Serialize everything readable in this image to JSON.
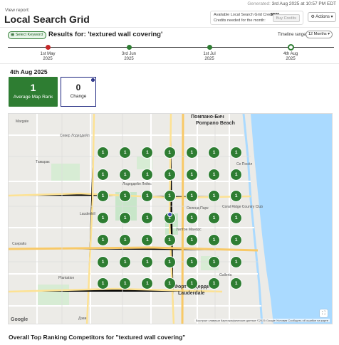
{
  "header": {
    "generated_prefix": "Generated:",
    "generated_value": "3rd Aug 2025 at 10:57 PM EDT",
    "view_report": "View report:",
    "title": "Local Search Grid"
  },
  "credits": {
    "available_label": "Available Local Search Grid Credits:",
    "available_value": "6370",
    "needed_label": "Credits needed for the month:",
    "needed_value": "0",
    "buy_label": "Buy Credits"
  },
  "actions": {
    "label": "Actions",
    "icon": "gear-icon",
    "chevron": "chevron-down-icon"
  },
  "keyword_bar": {
    "select_label": "Select Keyword",
    "results_title": "Results for: 'textured wall covering'",
    "timeline_label": "Timeline range:",
    "timeline_value": "12 Months"
  },
  "timeline": {
    "points": [
      {
        "date": "1st May",
        "year": "2025",
        "status": "red"
      },
      {
        "date": "3rd Jun",
        "year": "2025",
        "status": "green"
      },
      {
        "date": "1st Jul",
        "year": "2025",
        "status": "green"
      },
      {
        "date": "4th Aug",
        "year": "2025",
        "status": "active"
      }
    ]
  },
  "summary": {
    "date_heading": "4th Aug 2025",
    "avg_rank_value": "1",
    "avg_rank_label": "Average Map Rank",
    "change_value": "0",
    "change_label": "Change"
  },
  "map": {
    "labels": {
      "pompano_ru": "Помпано-Бич",
      "pompano_en": "Pompano Beach",
      "north_lauderdale": "Север Лодердейл",
      "oakland_park": "Окленд-Парк",
      "wilton_manors": "Уилтон Манорс",
      "fort_lauderdale": "Форт-Лодердейл",
      "plantation": "Plantation",
      "tamarac": "Тамарак",
      "lauderhill": "Lauderhill",
      "lighthouse_point": "Се Посёл",
      "margate": "Margate",
      "lauderdale_lakes": "Лодердейл Лейкс",
      "sunrise": "Санрайз",
      "coral_ridge": "Coral Ridge Country Club",
      "davie": "Дэви",
      "gallery": "Galleria",
      "ft_lauderdale_en": "Lauderdale"
    },
    "google_logo": "Google",
    "attribution": "Быстрые клавиши   Картографические данные ©2025 Google   Условия   Сообщить об ошибке на карте",
    "grid_ranks": [
      [
        "1",
        "1",
        "1",
        "1",
        "1",
        "1",
        "1"
      ],
      [
        "1",
        "1",
        "1",
        "1",
        "1",
        "1",
        "1"
      ],
      [
        "1",
        "1",
        "1",
        "1",
        "1",
        "1",
        "1"
      ],
      [
        "1",
        "1",
        "1",
        "1",
        "1",
        "1",
        "1"
      ],
      [
        "1",
        "1",
        "1",
        "1",
        "1",
        "1",
        "1"
      ],
      [
        "1",
        "1",
        "1",
        "1",
        "1",
        "1",
        "1"
      ],
      [
        "1",
        "1",
        "1",
        "1",
        "1",
        "1",
        "1"
      ]
    ],
    "colors": {
      "rank_top": "#2e7d32",
      "water": "#aadaff",
      "park": "#c8e6c9"
    }
  },
  "competitors": {
    "title": "Overall Top Ranking Competitors for \"textured wall covering\""
  }
}
